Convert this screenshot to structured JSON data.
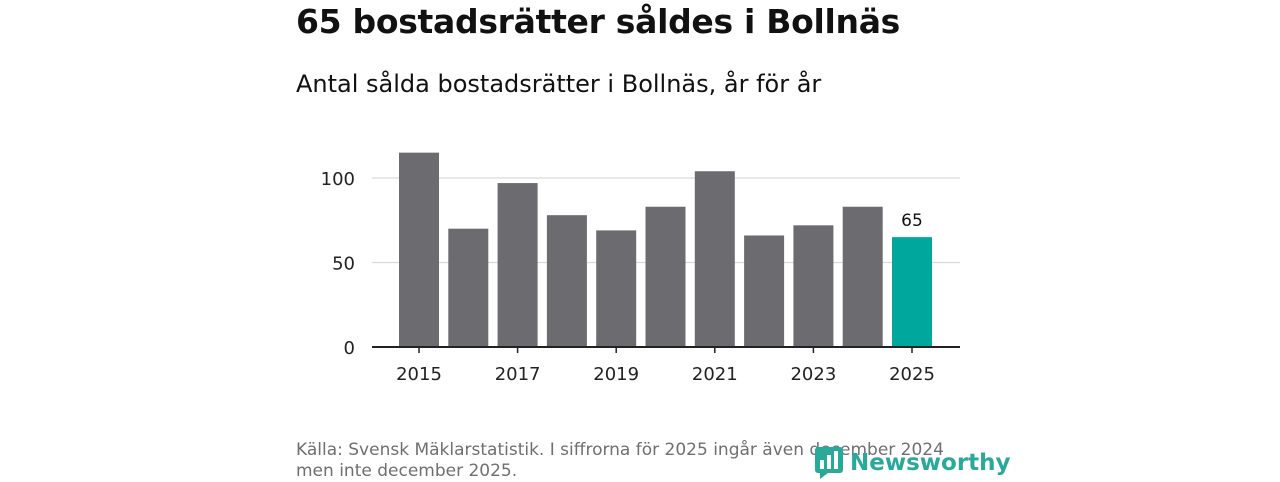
{
  "header": {
    "title": "65 bostadsrätter såldes i Bollnäs",
    "subtitle": "Antal sålda bostadsrätter i Bollnäs, år för år"
  },
  "chart_data": {
    "type": "bar",
    "categories": [
      "2015",
      "2016",
      "2017",
      "2018",
      "2019",
      "2020",
      "2021",
      "2022",
      "2023",
      "2024",
      "2025"
    ],
    "values": [
      115,
      70,
      97,
      78,
      69,
      83,
      104,
      66,
      72,
      83,
      65
    ],
    "x_tick_labels": [
      "2015",
      "2017",
      "2019",
      "2021",
      "2023",
      "2025"
    ],
    "y_ticks": [
      0,
      50,
      100
    ],
    "y_tick_labels": [
      "0",
      "50",
      "100"
    ],
    "ylim": [
      0,
      120
    ],
    "highlight_index": 10,
    "highlight_label": "65",
    "grid": true,
    "colors": {
      "bar": "#6c6b70",
      "highlight": "#00a79d",
      "grid": "#d9d9d9",
      "axis": "#222222"
    }
  },
  "footer": {
    "source": "Källa: Svensk Mäklarstatistik. I siffrorna för 2025 ingår även december 2024 men inte december 2025.",
    "logo_text": "Newsworthy",
    "logo_icon": "newsworthy-logo-icon"
  }
}
